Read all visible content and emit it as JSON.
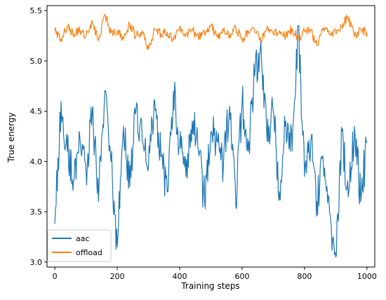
{
  "chart_data": {
    "type": "line",
    "xlabel": "Training steps",
    "ylabel": "True energy",
    "xlim": [
      -25,
      1025
    ],
    "ylim": [
      2.95,
      5.55
    ],
    "x_ticks": [
      0,
      200,
      400,
      600,
      800,
      1000
    ],
    "x_tick_labels": [
      "0",
      "200",
      "400",
      "600",
      "800",
      "1000"
    ],
    "y_ticks": [
      3.0,
      3.5,
      4.0,
      4.5,
      5.0,
      5.5
    ],
    "y_tick_labels": [
      "3.0",
      "3.5",
      "4.0",
      "4.5",
      "5.0",
      "5.5"
    ],
    "grid": false,
    "legend_position": "lower-left",
    "series": [
      {
        "name": "aac",
        "color": "#1f77b4",
        "note_shape": "noisy signal fluctuating mostly between ~3.5 and ~4.6 with spikes",
        "x": [
          0,
          20,
          40,
          60,
          80,
          100,
          120,
          140,
          160,
          180,
          200,
          220,
          240,
          260,
          280,
          300,
          320,
          340,
          360,
          380,
          400,
          420,
          440,
          460,
          480,
          500,
          520,
          540,
          560,
          580,
          600,
          620,
          640,
          660,
          680,
          700,
          720,
          740,
          760,
          780,
          800,
          820,
          840,
          860,
          880,
          900,
          920,
          940,
          960,
          980,
          1000
        ],
        "values": [
          3.38,
          4.6,
          4.1,
          3.8,
          4.25,
          3.9,
          4.5,
          3.6,
          4.7,
          4.0,
          3.15,
          4.35,
          3.75,
          4.5,
          4.2,
          3.95,
          4.6,
          4.05,
          3.7,
          4.7,
          4.15,
          3.85,
          4.4,
          4.1,
          3.6,
          4.3,
          4.2,
          3.95,
          4.55,
          3.55,
          4.6,
          4.1,
          4.85,
          5.2,
          4.2,
          4.5,
          3.7,
          4.4,
          4.1,
          5.35,
          3.85,
          4.2,
          3.6,
          4.0,
          3.5,
          3.05,
          4.3,
          3.65,
          4.35,
          3.6,
          4.2
        ]
      },
      {
        "name": "offload",
        "color": "#ff7f0e",
        "note_shape": "noisy signal around ~5.28 with small fluctuations",
        "x": [
          0,
          20,
          40,
          60,
          80,
          100,
          120,
          140,
          160,
          180,
          200,
          220,
          240,
          260,
          280,
          300,
          320,
          340,
          360,
          380,
          400,
          420,
          440,
          460,
          480,
          500,
          520,
          540,
          560,
          580,
          600,
          620,
          640,
          660,
          680,
          700,
          720,
          740,
          760,
          780,
          800,
          820,
          840,
          860,
          880,
          900,
          920,
          940,
          960,
          980,
          1000
        ],
        "values": [
          5.3,
          5.22,
          5.35,
          5.27,
          5.3,
          5.25,
          5.38,
          5.2,
          5.46,
          5.28,
          5.3,
          5.22,
          5.36,
          5.25,
          5.3,
          5.12,
          5.32,
          5.27,
          5.29,
          5.21,
          5.34,
          5.26,
          5.31,
          5.23,
          5.28,
          5.35,
          5.24,
          5.3,
          5.26,
          5.33,
          5.22,
          5.29,
          5.31,
          5.2,
          5.34,
          5.27,
          5.3,
          5.25,
          5.32,
          5.23,
          5.29,
          5.3,
          5.15,
          5.33,
          5.26,
          5.28,
          5.35,
          5.44,
          5.24,
          5.31,
          5.28
        ]
      }
    ]
  }
}
